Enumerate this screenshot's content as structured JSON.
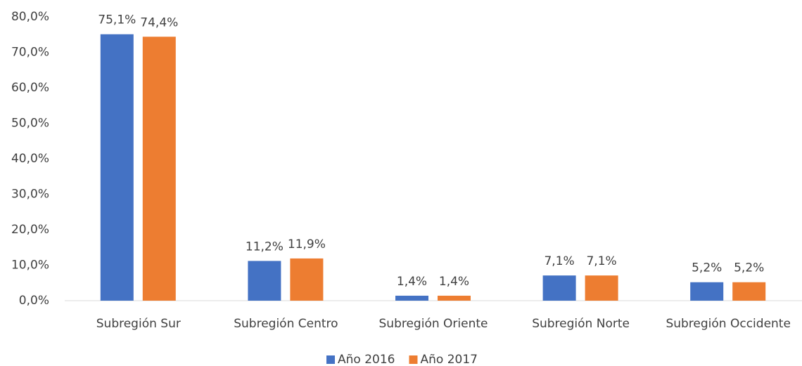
{
  "chart_data": {
    "type": "bar",
    "categories": [
      "Subregión Sur",
      "Subregión Centro",
      "Subregión Oriente",
      "Subregión Norte",
      "Subregión Occidente"
    ],
    "series": [
      {
        "name": "Año 2016",
        "color": "#4472c4",
        "values": [
          75.1,
          11.2,
          1.4,
          7.1,
          5.2
        ],
        "value_labels": [
          "75,1%",
          "11,2%",
          "1,4%",
          "7,1%",
          "5,2%"
        ]
      },
      {
        "name": "Año 2017",
        "color": "#ed7d31",
        "values": [
          74.4,
          11.9,
          1.4,
          7.1,
          5.2
        ],
        "value_labels": [
          "74,4%",
          "11,9%",
          "1,4%",
          "7,1%",
          "5,2%"
        ]
      }
    ],
    "ylim": [
      0,
      80
    ],
    "yticks": [
      {
        "value": 0,
        "label": "0,0%"
      },
      {
        "value": 10,
        "label": "10,0%"
      },
      {
        "value": 20,
        "label": "20,0%"
      },
      {
        "value": 30,
        "label": "30,0%"
      },
      {
        "value": 40,
        "label": "40,0%"
      },
      {
        "value": 50,
        "label": "50,0%"
      },
      {
        "value": 60,
        "label": "60,0%"
      },
      {
        "value": 70,
        "label": "70,0%"
      },
      {
        "value": 80,
        "label": "80,0%"
      }
    ],
    "grid": false,
    "legend": "bottom"
  }
}
